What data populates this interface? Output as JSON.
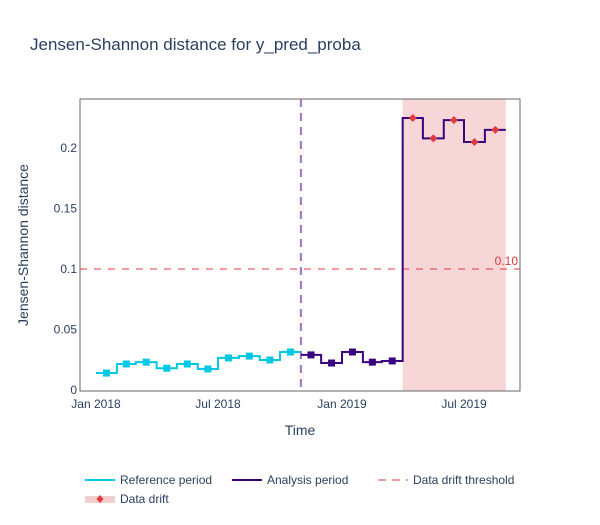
{
  "chart_data": {
    "type": "line",
    "title": "Jensen-Shannon distance for y_pred_proba",
    "xlabel": "Time",
    "ylabel": "Jensen-Shannon distance",
    "ylim": [
      0,
      0.24
    ],
    "yticks": [
      0,
      0.05,
      0.1,
      0.15,
      0.2
    ],
    "ytick_labels": [
      "0",
      "0.05",
      "0.1",
      "0.15",
      "0.2"
    ],
    "xticks": [
      {
        "date": "2018-01-01",
        "label": "Jan 2018"
      },
      {
        "date": "2018-07-01",
        "label": "Jul 2018"
      },
      {
        "date": "2019-01-01",
        "label": "Jan 2019"
      },
      {
        "date": "2019-07-01",
        "label": "Jul 2019"
      }
    ],
    "xlim": [
      "2017-12-09",
      "2019-09-05"
    ],
    "threshold": {
      "value": 0.1,
      "label": "0.10",
      "color": "#e0393e"
    },
    "period_divider": "2018-11-01",
    "drift_region": {
      "start": "2019-04-01",
      "end": "2019-09-01",
      "color": "#f5cfd0"
    },
    "series": [
      {
        "name": "Reference period",
        "color": "#00c8e5",
        "chunks": [
          {
            "start": "2018-01-01",
            "end": "2018-02-01",
            "value": 0.014
          },
          {
            "start": "2018-02-01",
            "end": "2018-03-01",
            "value": 0.0215
          },
          {
            "start": "2018-03-01",
            "end": "2018-04-01",
            "value": 0.023
          },
          {
            "start": "2018-04-01",
            "end": "2018-05-01",
            "value": 0.018
          },
          {
            "start": "2018-05-01",
            "end": "2018-06-01",
            "value": 0.0215
          },
          {
            "start": "2018-06-01",
            "end": "2018-07-01",
            "value": 0.0174
          },
          {
            "start": "2018-07-01",
            "end": "2018-08-01",
            "value": 0.0265
          },
          {
            "start": "2018-08-01",
            "end": "2018-09-01",
            "value": 0.028
          },
          {
            "start": "2018-09-01",
            "end": "2018-10-01",
            "value": 0.0248
          },
          {
            "start": "2018-10-01",
            "end": "2018-11-01",
            "value": 0.0314
          }
        ]
      },
      {
        "name": "Analysis period",
        "color": "#3b0280",
        "chunks": [
          {
            "start": "2018-11-01",
            "end": "2018-12-01",
            "value": 0.029,
            "drift": false
          },
          {
            "start": "2018-12-01",
            "end": "2019-01-01",
            "value": 0.0223,
            "drift": false
          },
          {
            "start": "2019-01-01",
            "end": "2019-02-01",
            "value": 0.0314,
            "drift": false
          },
          {
            "start": "2019-02-01",
            "end": "2019-03-01",
            "value": 0.023,
            "drift": false
          },
          {
            "start": "2019-03-01",
            "end": "2019-04-01",
            "value": 0.024,
            "drift": false
          },
          {
            "start": "2019-04-01",
            "end": "2019-05-01",
            "value": 0.2248,
            "drift": true
          },
          {
            "start": "2019-05-01",
            "end": "2019-06-01",
            "value": 0.208,
            "drift": true
          },
          {
            "start": "2019-06-01",
            "end": "2019-07-01",
            "value": 0.223,
            "drift": true
          },
          {
            "start": "2019-07-01",
            "end": "2019-08-01",
            "value": 0.205,
            "drift": true
          },
          {
            "start": "2019-08-01",
            "end": "2019-09-01",
            "value": 0.215,
            "drift": true
          }
        ]
      }
    ],
    "legend": {
      "placement": "bottom",
      "items": [
        {
          "label": "Reference period",
          "kind": "line",
          "color": "#00c8e5"
        },
        {
          "label": "Analysis period",
          "kind": "line",
          "color": "#3b0280"
        },
        {
          "label": "Data drift threshold",
          "kind": "dash",
          "color": "#e0393e"
        },
        {
          "label": "Data drift",
          "kind": "region-marker",
          "color": "#e0393e",
          "fill": "#f5cfd0"
        }
      ]
    },
    "divider_color": "#9b72c6",
    "drift_marker_color": "#e0393e"
  }
}
